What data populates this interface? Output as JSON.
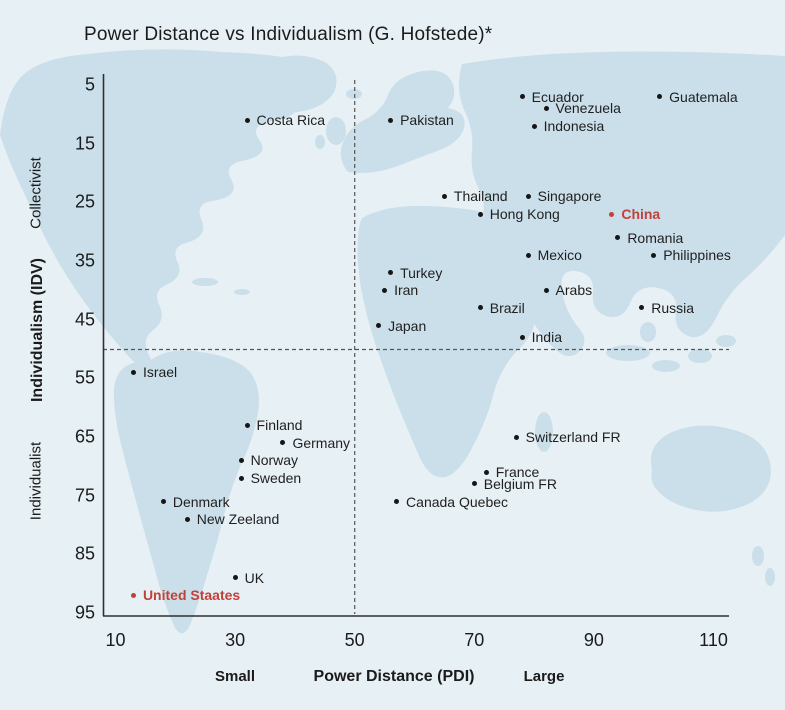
{
  "title": "Power Distance vs Individualism (G. Hofstede)*",
  "colors": {
    "background": "#e7f0f5",
    "map_land": "#cbdfeb",
    "axis": "#2f2f2f",
    "dashed_line": "#555555",
    "text": "#1b1b1b",
    "highlight_red": "#c2403a"
  },
  "chart_data": {
    "type": "scatter",
    "title": "Power Distance vs Individualism (G. Hofstede)*",
    "xlabel": "Power Distance (PDI)",
    "ylabel": "Individualism (IDV)",
    "x_axis": {
      "label": "Power Distance (PDI)",
      "left_caption": "Small",
      "right_caption": "Large",
      "ticks": [
        10,
        30,
        50,
        70,
        90,
        110
      ],
      "range": [
        10,
        110
      ]
    },
    "y_axis": {
      "label": "Individualism (IDV)",
      "top_caption": "Collectivist",
      "bottom_caption": "Individualist",
      "ticks": [
        5,
        15,
        25,
        35,
        45,
        55,
        65,
        75,
        85,
        95
      ],
      "range": [
        5,
        95
      ],
      "inverted": true
    },
    "reference_lines": {
      "x": 50,
      "y": 50
    },
    "legend": "off",
    "grid": "off",
    "points": [
      {
        "label": "Ecuador",
        "pdi": 78,
        "idv": 7,
        "highlight": false
      },
      {
        "label": "Guatemala",
        "pdi": 101,
        "idv": 7,
        "highlight": false
      },
      {
        "label": "Venezuela",
        "pdi": 82,
        "idv": 9,
        "highlight": false
      },
      {
        "label": "Indonesia",
        "pdi": 80,
        "idv": 12,
        "highlight": false
      },
      {
        "label": "Costa Rica",
        "pdi": 32,
        "idv": 11,
        "highlight": false
      },
      {
        "label": "Pakistan",
        "pdi": 56,
        "idv": 11,
        "highlight": false
      },
      {
        "label": "Thailand",
        "pdi": 65,
        "idv": 24,
        "highlight": false
      },
      {
        "label": "Singapore",
        "pdi": 79,
        "idv": 24,
        "highlight": false
      },
      {
        "label": "Hong Kong",
        "pdi": 71,
        "idv": 27,
        "highlight": false
      },
      {
        "label": "China",
        "pdi": 93,
        "idv": 27,
        "highlight": true
      },
      {
        "label": "Romania",
        "pdi": 94,
        "idv": 31,
        "highlight": false
      },
      {
        "label": "Mexico",
        "pdi": 79,
        "idv": 34,
        "highlight": false
      },
      {
        "label": "Philippines",
        "pdi": 100,
        "idv": 34,
        "highlight": false
      },
      {
        "label": "Turkey",
        "pdi": 56,
        "idv": 37,
        "highlight": false
      },
      {
        "label": "Iran",
        "pdi": 55,
        "idv": 40,
        "highlight": false
      },
      {
        "label": "Arabs",
        "pdi": 82,
        "idv": 40,
        "highlight": false
      },
      {
        "label": "Brazil",
        "pdi": 71,
        "idv": 43,
        "highlight": false
      },
      {
        "label": "Russia",
        "pdi": 98,
        "idv": 43,
        "highlight": false
      },
      {
        "label": "Japan",
        "pdi": 54,
        "idv": 46,
        "highlight": false
      },
      {
        "label": "India",
        "pdi": 78,
        "idv": 48,
        "highlight": false
      },
      {
        "label": "Israel",
        "pdi": 13,
        "idv": 54,
        "highlight": false
      },
      {
        "label": "Finland",
        "pdi": 32,
        "idv": 63,
        "highlight": false
      },
      {
        "label": "Germany",
        "pdi": 38,
        "idv": 66,
        "highlight": false
      },
      {
        "label": "Norway",
        "pdi": 31,
        "idv": 69,
        "highlight": false
      },
      {
        "label": "Sweden",
        "pdi": 31,
        "idv": 72,
        "highlight": false
      },
      {
        "label": "Switzerland FR",
        "pdi": 77,
        "idv": 65,
        "highlight": false
      },
      {
        "label": "France",
        "pdi": 72,
        "idv": 71,
        "highlight": false
      },
      {
        "label": "Belgium FR",
        "pdi": 70,
        "idv": 73,
        "highlight": false
      },
      {
        "label": "Denmark",
        "pdi": 18,
        "idv": 76,
        "highlight": false
      },
      {
        "label": "Canada Quebec",
        "pdi": 57,
        "idv": 76,
        "highlight": false
      },
      {
        "label": "New Zeeland",
        "pdi": 22,
        "idv": 79,
        "highlight": false
      },
      {
        "label": "UK",
        "pdi": 30,
        "idv": 89,
        "highlight": false
      },
      {
        "label": "United Staates",
        "pdi": 13,
        "idv": 92,
        "highlight": true
      }
    ]
  }
}
